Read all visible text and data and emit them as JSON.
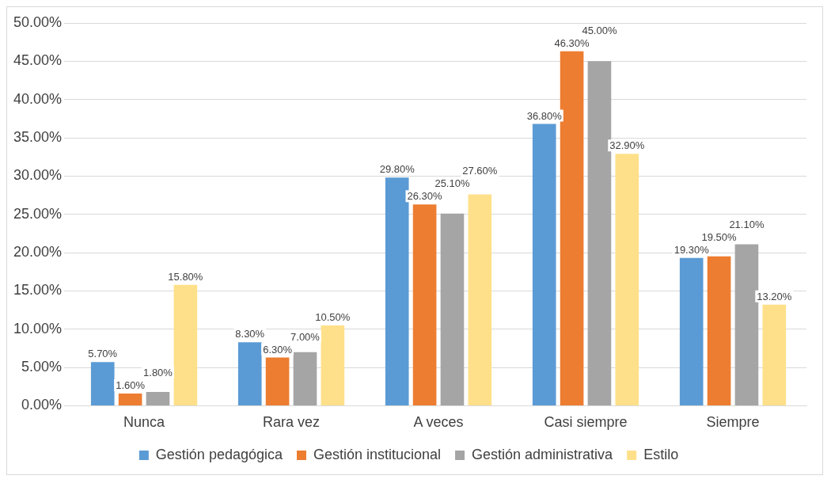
{
  "chart_data": {
    "type": "bar",
    "categories": [
      "Nunca",
      "Rara vez",
      "A veces",
      "Casi siempre",
      "Siempre"
    ],
    "series": [
      {
        "name": "Gestión pedagógica",
        "color": "#5b9bd5",
        "values": [
          5.7,
          8.3,
          29.8,
          36.8,
          19.3
        ],
        "value_labels": [
          "5.70%",
          "8.30%",
          "29.80%",
          "36.80%",
          "19.30%"
        ]
      },
      {
        "name": "Gestión institucional",
        "color": "#ed7d31",
        "values": [
          1.6,
          6.3,
          26.3,
          46.3,
          19.5
        ],
        "value_labels": [
          "1.60%",
          "6.30%",
          "26.30%",
          "46.30%",
          "19.50%"
        ]
      },
      {
        "name": "Gestión administrativa",
        "color": "#a5a5a5",
        "values": [
          1.8,
          7.0,
          25.1,
          45.0,
          21.1
        ],
        "value_labels": [
          "1.80%",
          "7.00%",
          "25.10%",
          "45.00%",
          "21.10%"
        ]
      },
      {
        "name": "Estilo",
        "color": "#ffe08a",
        "values": [
          15.8,
          10.5,
          27.6,
          32.9,
          13.2
        ],
        "value_labels": [
          "15.80%",
          "10.50%",
          "27.60%",
          "32.90%",
          "13.20%"
        ]
      }
    ],
    "ylim": [
      0,
      50
    ],
    "yticks": [
      {
        "value": 0,
        "label": "0.00%"
      },
      {
        "value": 5,
        "label": "5.00%"
      },
      {
        "value": 10,
        "label": "10.00%"
      },
      {
        "value": 15,
        "label": "15.00%"
      },
      {
        "value": 20,
        "label": "20.00%"
      },
      {
        "value": 25,
        "label": "25.00%"
      },
      {
        "value": 30,
        "label": "30.00%"
      },
      {
        "value": 35,
        "label": "35.00%"
      },
      {
        "value": 40,
        "label": "40.00%"
      },
      {
        "value": 45,
        "label": "45.00%"
      },
      {
        "value": 50,
        "label": "50.00%"
      }
    ],
    "grid": "y",
    "legend": "bottom"
  }
}
